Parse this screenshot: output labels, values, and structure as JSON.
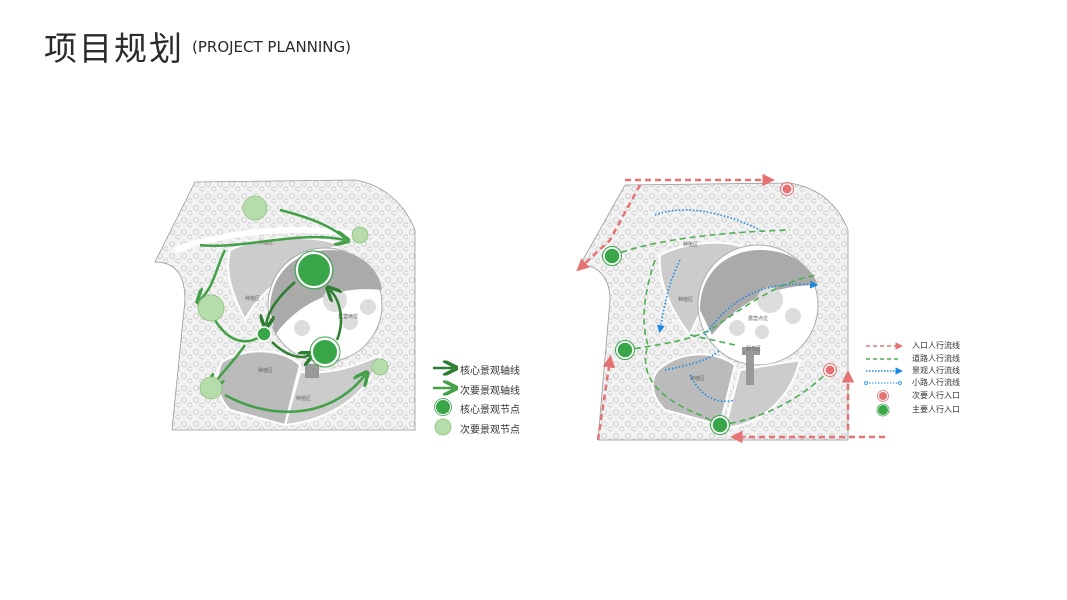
{
  "header": {
    "title": "项目规划",
    "subtitle": "(PROJECT PLANNING)"
  },
  "left_plan": {
    "labels": {
      "zone1": "种植区",
      "zone2": "种植区",
      "zone3": "种植区",
      "zone4": "种植区",
      "camp": "露营点位"
    },
    "legend": [
      {
        "label": "核心景观轴线",
        "icon": "dark-green-arrow",
        "color": "#2e7d32"
      },
      {
        "label": "次要景观轴线",
        "icon": "green-arrow",
        "color": "#43a047"
      },
      {
        "label": "核心景观节点",
        "icon": "dark-green-circle",
        "color": "#3aa64a"
      },
      {
        "label": "次要景观节点",
        "icon": "light-green-circle",
        "color": "#b5dcaa"
      }
    ]
  },
  "right_plan": {
    "labels": {
      "zone1": "种植区",
      "zone2": "种植区",
      "zone3": "种植区",
      "camp": "露营点位",
      "service": "服务区"
    },
    "legend": [
      {
        "label": "入口人行流线",
        "icon": "red-dashed-arrow",
        "color": "#e57373"
      },
      {
        "label": "道路人行流线",
        "icon": "green-dashed-arrow",
        "color": "#4caf50"
      },
      {
        "label": "景观人行流线",
        "icon": "blue-dotted-arrow",
        "color": "#1e88e5"
      },
      {
        "label": "小路人行流线",
        "icon": "blue-dotted-line",
        "color": "#42a5f5"
      },
      {
        "label": "次要人行入口",
        "icon": "pink-circle",
        "color": "#e57373"
      },
      {
        "label": "主要人行入口",
        "icon": "green-circle",
        "color": "#3aa64a"
      }
    ]
  }
}
